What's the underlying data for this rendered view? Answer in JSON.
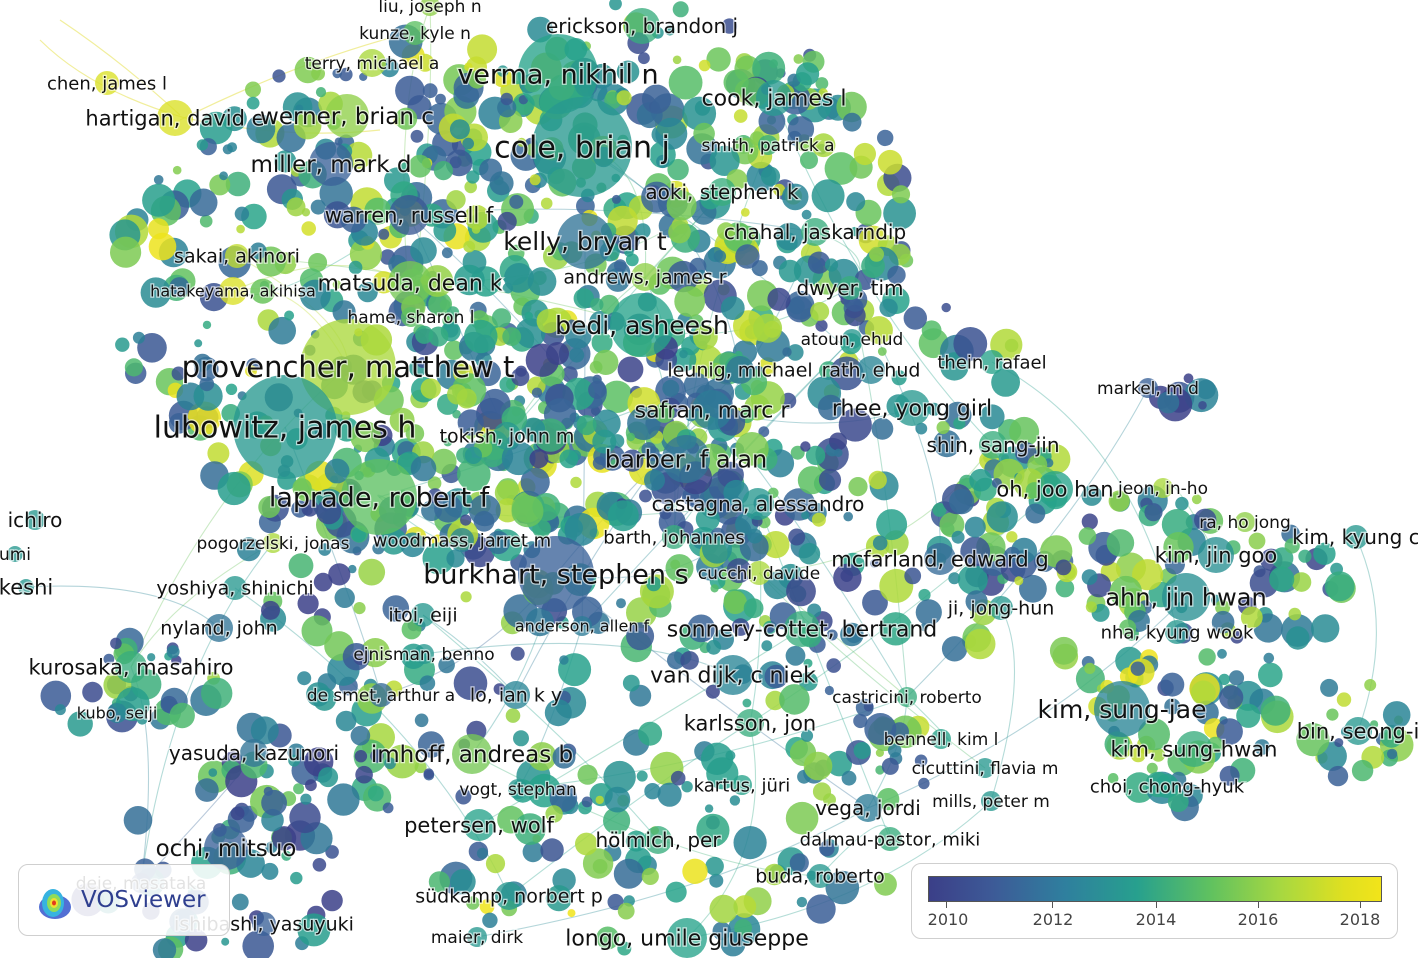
{
  "app": {
    "name": "VOSviewer"
  },
  "legend": {
    "ticks": [
      "2010",
      "2012",
      "2014",
      "2016",
      "2018"
    ]
  },
  "colors": {
    "old": "#3b3f88",
    "mid": "#27a08e",
    "new": "#f2e41a"
  },
  "labels": [
    "liu, joseph n",
    "kunze, kyle n",
    "erickson, brandon j",
    "terry, michael a",
    "verma, nikhil n",
    "chen, james l",
    "hartigan, david e",
    "werner, brian c",
    "cook, james l",
    "cole, brian j",
    "smith, patrick a",
    "miller, mark d",
    "aoki, stephen k",
    "warren, russell f",
    "chahal, jaskarndip",
    "kelly, bryan t",
    "sakai, akinori",
    "andrews, james r",
    "hatakeyama, akihisa",
    "matsuda, dean k",
    "dwyer, tim",
    "hame, sharon l",
    "bedi, asheesh",
    "atoun, ehud",
    "provencher, matthew t",
    "leunig, michael",
    "rath, ehud",
    "thein, rafael",
    "markel, m d",
    "lubowitz, james h",
    "safran, marc r",
    "rhee, yong girl",
    "tokish, john m",
    "shin, sang-jin",
    "barber, f alan",
    "oh, joo han",
    "jeon, in-ho",
    "laprade, robert f",
    "castagna, alessandro",
    "ichiro",
    "ra, ho jong",
    "pogorzelski, jonas",
    "woodmass, jarret m",
    "barth, johannes",
    "kim, kyung c",
    "umi",
    "kim, jin goo",
    "mcfarland, edward g",
    "burkhart, stephen s",
    "cucchi, davide",
    "keshi",
    "yoshiya, shinichi",
    "ahn, jin hwan",
    "ji, jong-hun",
    "itoi, eiji",
    "nyland, john",
    "anderson, allen f",
    "sonnery-cottet, bertrand",
    "nha, kyung wook",
    "ejnisman, benno",
    "kurosaka, masahiro",
    "van dijk, c niek",
    "de smet, arthur a",
    "lo, ian k y",
    "castricini, roberto",
    "kim, sung-jae",
    "kubo, seiji",
    "karlsson, jon",
    "bin, seong-i",
    "bennell, kim l",
    "yasuda, kazunori",
    "imhoff, andreas b",
    "kim, sung-hwan",
    "cicuttini, flavia m",
    "kartus, jüri",
    "vogt, stephan",
    "choi, chong-hyuk",
    "mills, peter m",
    "vega, jordi",
    "petersen, wolf",
    "dalmau-pastor, miki",
    "hölmich, per",
    "ochi, mitsuo",
    "buda, roberto",
    "deie, masataka",
    "südkamp, norbert p",
    "ishibashi, yasuyuki",
    "maier, dirk",
    "longo, umile giuseppe"
  ]
}
